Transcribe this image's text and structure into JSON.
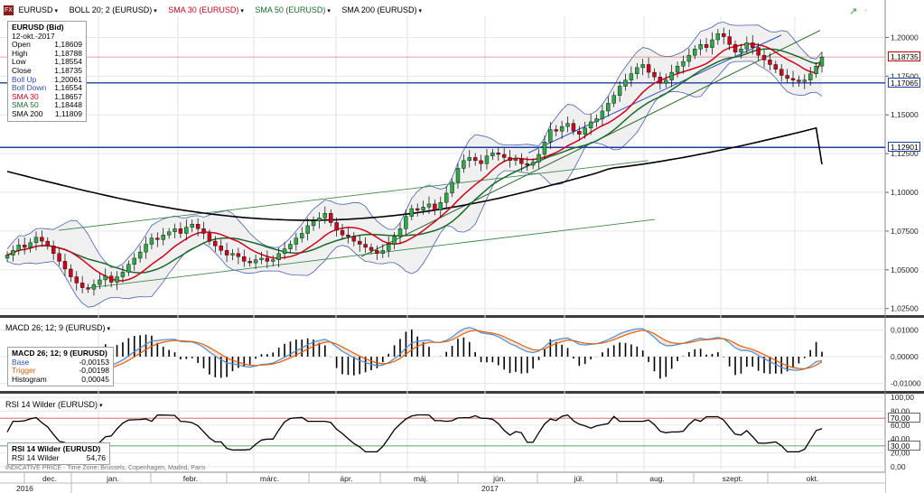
{
  "main_panel": {
    "symbol": "EURUSD",
    "indicators": [
      {
        "label": "BOLL 20; 2 (EURUSD)",
        "color": "#000000"
      },
      {
        "label": "SMA 30 (EURUSD)",
        "color": "#d0021b"
      },
      {
        "label": "SMA 50 (EURUSD)",
        "color": "#1a6b2a"
      },
      {
        "label": "SMA 200 (EURUSD)",
        "color": "#000000"
      }
    ],
    "info_box": {
      "title": "EURUSD (Bid)",
      "date": "12-okt.-2017",
      "rows": [
        {
          "label": "Open",
          "value": "1,18609",
          "color": "#000000"
        },
        {
          "label": "High",
          "value": "1,18788",
          "color": "#000000"
        },
        {
          "label": "Low",
          "value": "1,18554",
          "color": "#000000"
        },
        {
          "label": "Close",
          "value": "1,18735",
          "color": "#000000"
        },
        {
          "label": "Boll Up",
          "value": "1,20061",
          "color": "#2d4fbf"
        },
        {
          "label": "Boll Down",
          "value": "1,16554",
          "color": "#2d4fbf"
        },
        {
          "label": "SMA 30",
          "value": "1,18657",
          "color": "#d0021b"
        },
        {
          "label": "SMA 50",
          "value": "1,18448",
          "color": "#1a6b2a"
        },
        {
          "label": "SMA 200",
          "value": "1,11809",
          "color": "#000000"
        }
      ]
    },
    "right_tags": [
      {
        "value": "1,18735",
        "style": "red",
        "price": 1.18735
      },
      {
        "value": "1,17065",
        "style": "blue",
        "price": 1.17065
      },
      {
        "value": "1,12901",
        "style": "blue",
        "price": 1.12901
      }
    ]
  },
  "macd_panel": {
    "title": "MACD 26; 12; 9 (EURUSD)",
    "info_box": {
      "title": "MACD 26; 12; 9 (EURUSD)",
      "rows": [
        {
          "label": "Base",
          "value": "-0,00153",
          "color": "#2d4fbf"
        },
        {
          "label": "Trigger",
          "value": "-0,00198",
          "color": "#e06010"
        },
        {
          "label": "Histogram",
          "value": "0,00045",
          "color": "#000000"
        }
      ]
    }
  },
  "rsi_panel": {
    "title": "RSI 14 Wilder (EURUSD)",
    "info_box": {
      "title": "RSI 14 Wilder (EURUSD)",
      "rows": [
        {
          "label": "RSI 14 Wilder",
          "value": "54,76",
          "color": "#000000"
        }
      ]
    },
    "right_tags": [
      {
        "value": "70,00",
        "style": "gray",
        "level": 70
      },
      {
        "value": "30,00",
        "style": "gray",
        "level": 30
      }
    ]
  },
  "footer_text": "INDICATIVE PRICE · Time Zone: Brussels, Copenhagen, Madrid, Paris",
  "chart_data": [
    {
      "type": "line",
      "title": "EURUSD",
      "y_ticks": [
        "1,02500",
        "1,05000",
        "1,07500",
        "1,10000",
        "1,12500",
        "1,15000",
        "1,17500",
        "1,20000"
      ],
      "y_tick_values": [
        1.025,
        1.05,
        1.075,
        1.1,
        1.125,
        1.15,
        1.175,
        1.2
      ],
      "ylim": [
        1.0225,
        1.2125
      ],
      "x_ticks": [
        "dec.",
        "jan.",
        "febr.",
        "márc.",
        "ápr.",
        "máj.",
        "jún.",
        "júl.",
        "aug.",
        "szept.",
        "okt."
      ],
      "years": [
        "2016",
        "2017"
      ],
      "close": [
        1.0595,
        1.0625,
        1.066,
        1.0645,
        1.0675,
        1.071,
        1.0685,
        1.0655,
        1.0605,
        1.0555,
        1.0505,
        1.0455,
        1.0415,
        1.0385,
        1.0375,
        1.0405,
        1.0435,
        1.046,
        1.042,
        1.0455,
        1.0485,
        1.0535,
        1.0575,
        1.0615,
        1.0665,
        1.0705,
        1.0695,
        1.0725,
        1.0745,
        1.0765,
        1.0735,
        1.0775,
        1.0795,
        1.0765,
        1.0735,
        1.0685,
        1.0655,
        1.0625,
        1.0595,
        1.0605,
        1.0585,
        1.0555,
        1.0545,
        1.0565,
        1.0575,
        1.0555,
        1.0565,
        1.0605,
        1.0635,
        1.0665,
        1.0705,
        1.0735,
        1.0785,
        1.0815,
        1.0835,
        1.0865,
        1.0805,
        1.0755,
        1.0725,
        1.0715,
        1.0685,
        1.0665,
        1.0645,
        1.0625,
        1.0605,
        1.0625,
        1.0665,
        1.0715,
        1.0765,
        1.0845,
        1.0895,
        1.0885,
        1.0905,
        1.0925,
        1.0885,
        1.0935,
        1.0995,
        1.1065,
        1.1155,
        1.1205,
        1.1225,
        1.1205,
        1.1185,
        1.1235,
        1.1255,
        1.1245,
        1.1225,
        1.1205,
        1.1215,
        1.1185,
        1.1175,
        1.1195,
        1.1245,
        1.1325,
        1.1405,
        1.1395,
        1.1425,
        1.1445,
        1.1395,
        1.1375,
        1.1415,
        1.1455,
        1.1475,
        1.1525,
        1.1575,
        1.1625,
        1.1685,
        1.1725,
        1.1765,
        1.1805,
        1.1825,
        1.1775,
        1.1745,
        1.1705,
        1.1725,
        1.1775,
        1.1815,
        1.1845,
        1.1885,
        1.1925,
        1.1955,
        1.1935,
        1.1985,
        1.2025,
        1.2005,
        1.1955,
        1.1905,
        1.1925,
        1.1965,
        1.1935,
        1.1885,
        1.1855,
        1.1825,
        1.1795,
        1.1755,
        1.1735,
        1.1725,
        1.1715,
        1.1725,
        1.1765,
        1.1815,
        1.18735
      ],
      "sma30_end": 1.18657,
      "sma50_end": 1.18448,
      "sma200_end": 1.11809,
      "boll_up_end": 1.20061,
      "boll_down_end": 1.16554,
      "hlines": [
        1.18735,
        1.17065,
        1.12901
      ]
    },
    {
      "type": "line",
      "title": "MACD 26; 12; 9 (EURUSD)",
      "y_ticks": [
        "0,01000",
        "0,00000",
        "-0,01000"
      ],
      "y_tick_values": [
        0.01,
        0.0,
        -0.01
      ],
      "ylim": [
        -0.0125,
        0.0135
      ],
      "base_end": -0.00153,
      "trigger_end": -0.00198,
      "histogram_end": 0.00045
    },
    {
      "type": "line",
      "title": "RSI 14 Wilder (EURUSD)",
      "y_ticks": [
        "100,00",
        "80,00",
        "60,00",
        "40,00",
        "20,00",
        "0,00"
      ],
      "y_tick_values": [
        100,
        80,
        60,
        40,
        20,
        0
      ],
      "ylim": [
        0,
        100
      ],
      "levels": [
        70,
        30
      ],
      "last": 54.76
    }
  ]
}
